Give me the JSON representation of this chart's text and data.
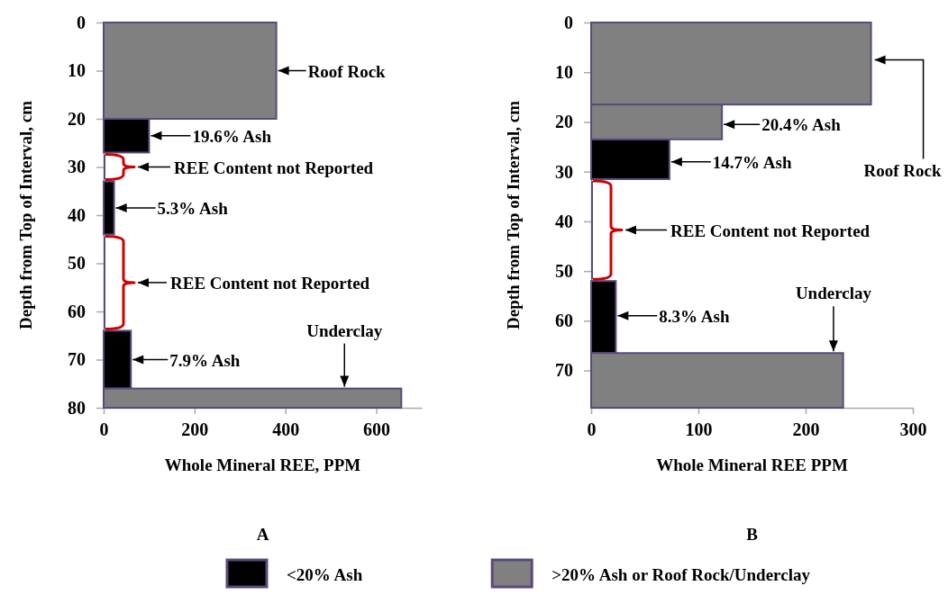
{
  "chart_data": [
    {
      "type": "histogram",
      "orientation": "horizontal",
      "xlabel": "Whole Mineral REE, PPM",
      "ylabel": "Depth from Top of Interval, cm",
      "bins": [
        0,
        20,
        27,
        33,
        44,
        64,
        76,
        80
      ],
      "series": [
        {
          "name": "<20% Ash",
          "color": "#000000",
          "values": [
            null,
            100,
            null,
            23,
            null,
            60,
            null
          ]
        },
        {
          "name": ">20% Ash or Roof Rock/Underclay",
          "color": "#808080",
          "values": [
            380,
            null,
            null,
            null,
            null,
            null,
            655
          ]
        }
      ],
      "xlim": [
        0,
        700
      ],
      "xticks": [
        0,
        200,
        400,
        600
      ],
      "ylim": [
        80,
        0
      ],
      "yticks": [
        0,
        10,
        20,
        30,
        40,
        50,
        60,
        70,
        80
      ],
      "legend": "bottom",
      "annotations": [
        {
          "text": "Roof Rock",
          "x": 380,
          "y": 10
        },
        {
          "text": "19.6% Ash",
          "x": 100,
          "y": 23.5
        },
        "REE Content not Reported",
        {
          "text": "5.3% Ash",
          "x": 23,
          "y": 38.5
        },
        "REE Content not Reported",
        {
          "text": "7.9% Ash",
          "x": 60,
          "y": 70
        },
        {
          "text": "Underclay",
          "x": 530,
          "y": 76
        },
        "A"
      ]
    },
    {
      "type": "histogram",
      "orientation": "horizontal",
      "xlabel": "Whole Mineral REE PPM",
      "ylabel": "Depth from Top of Interval, cm",
      "bins": [
        0,
        16.5,
        23.5,
        31.5,
        52,
        66.5,
        77.5
      ],
      "series": [
        {
          "color": "#000000",
          "values": [
            null,
            null,
            73,
            null,
            23,
            null
          ]
        },
        {
          "color": "#808080",
          "values": [
            261,
            122,
            null,
            null,
            null,
            235
          ]
        }
      ],
      "xlim": [
        0,
        300
      ],
      "xticks": [
        0,
        100,
        200,
        300
      ],
      "ylim": [
        77.5,
        0
      ],
      "yticks": [
        0,
        10,
        20,
        30,
        40,
        50,
        60,
        70
      ],
      "annotations": [
        {
          "text": "Roof Rock",
          "x": 261,
          "y": 7.5
        },
        {
          "text": "20.4% Ash",
          "x": 122,
          "y": 20.5
        },
        {
          "text": "14.7% Ash",
          "x": 73,
          "y": 28
        },
        "REE Content not Reported",
        {
          "text": "8.3% Ash",
          "x": 23,
          "y": 59
        },
        {
          "text": "Underclay",
          "x": 226,
          "y": 66.5
        },
        "B"
      ]
    }
  ]
}
